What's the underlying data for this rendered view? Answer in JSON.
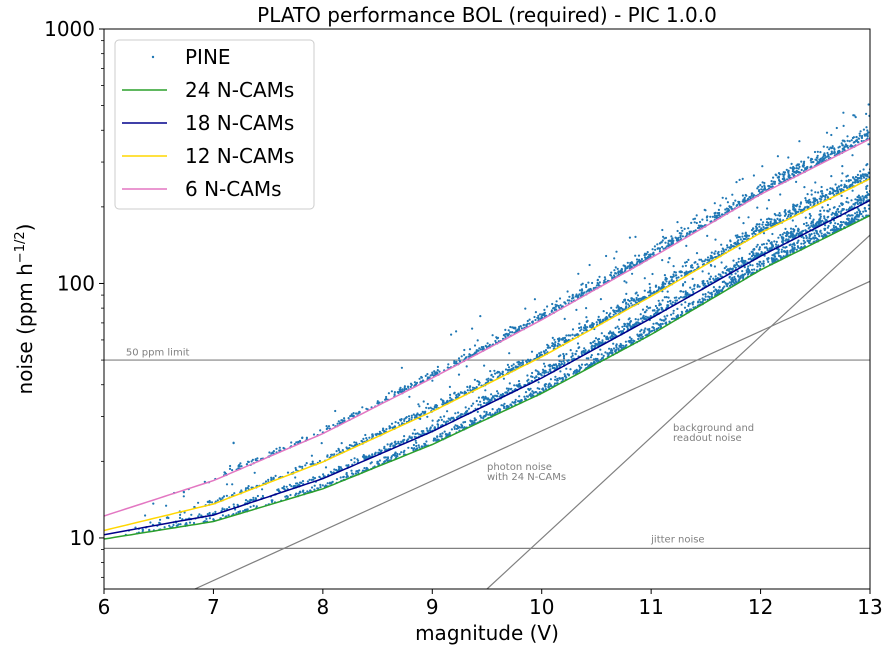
{
  "chart_data": {
    "type": "scatter",
    "title": "PLATO performance BOL (required) - PIC 1.0.0",
    "xlabel": "magnitude (V)",
    "ylabel": "noise (ppm h",
    "ylabel_sup": "−1/2",
    "ylabel_close": ")",
    "xlim": [
      6,
      13
    ],
    "ylim": [
      6.3,
      1000
    ],
    "yscale": "log",
    "x_ticks": [
      "6",
      "7",
      "8",
      "9",
      "10",
      "11",
      "12",
      "13"
    ],
    "y_ticks": [
      "10",
      "100",
      "1000"
    ],
    "legend": {
      "position": "top-left",
      "entries": [
        "PINE",
        "24 N-CAMs",
        "18 N-CAMs",
        "12 N-CAMs",
        "6 N-CAMs"
      ]
    },
    "colors": {
      "pine": "#1f77b4",
      "cams24": "#2ca02c",
      "cams18": "#00008b",
      "cams12": "#ffd700",
      "cams6": "#e377c2",
      "reference": "#808080"
    },
    "series": [
      {
        "name": "24 N-CAMs",
        "x": [
          6,
          7,
          8,
          9,
          10,
          11,
          12,
          13
        ],
        "y": [
          9.9,
          11.6,
          15.6,
          23.3,
          37,
          63,
          113,
          185
        ]
      },
      {
        "name": "18 N-CAMs",
        "x": [
          6,
          7,
          8,
          9,
          10,
          11,
          12,
          13
        ],
        "y": [
          10.3,
          12.3,
          17.1,
          26.2,
          42.5,
          73,
          128,
          212
        ]
      },
      {
        "name": "12 N-CAMs",
        "x": [
          6,
          7,
          8,
          9,
          10,
          11,
          12,
          13
        ],
        "y": [
          10.7,
          13.6,
          19.9,
          31.4,
          51.5,
          89,
          158,
          258
        ]
      },
      {
        "name": "6 N-CAMs",
        "x": [
          6,
          7,
          8,
          9,
          10,
          11,
          12,
          13
        ],
        "y": [
          12.2,
          16.8,
          25.7,
          42.5,
          72,
          126,
          224,
          370
        ]
      }
    ],
    "pine_groups": [
      {
        "cams": 24,
        "x": [
          6.0,
          7.0,
          8.0,
          9.0,
          10.0,
          11.0,
          12.0,
          13.0
        ],
        "y": [
          9.9,
          11.6,
          15.6,
          23.3,
          37,
          63,
          113,
          185
        ]
      },
      {
        "cams": 18,
        "x": [
          6.1,
          7.0,
          8.0,
          9.0,
          10.0,
          11.0,
          12.0,
          13.0
        ],
        "y": [
          10.3,
          12.3,
          17.1,
          26.2,
          42.5,
          73,
          128,
          212
        ]
      },
      {
        "cams": 12,
        "x": [
          6.3,
          7.0,
          8.0,
          9.0,
          10.0,
          11.0,
          12.0,
          13.0
        ],
        "y": [
          10.9,
          13.6,
          19.9,
          31.4,
          51.5,
          89,
          158,
          258
        ]
      },
      {
        "cams": 6,
        "x": [
          6.6,
          7.0,
          8.0,
          9.0,
          10.0,
          11.0,
          12.0,
          13.0
        ],
        "y": [
          13.8,
          16.8,
          25.7,
          42.5,
          72,
          126,
          224,
          370
        ]
      }
    ],
    "reference_lines": [
      {
        "label": "50 ppm limit",
        "x": [
          6,
          13
        ],
        "y": [
          50,
          50
        ]
      },
      {
        "label": "jitter noise",
        "x": [
          6,
          13
        ],
        "y": [
          9.1,
          9.1
        ]
      },
      {
        "label": "photon noise\nwith 24 N-CAMs",
        "x": [
          6.83,
          13
        ],
        "y": [
          6.3,
          102
        ]
      },
      {
        "label": "background and\nreadout noise",
        "x": [
          9.5,
          13
        ],
        "y": [
          6.3,
          155
        ]
      }
    ],
    "annotations": [
      {
        "text": "50 ppm limit",
        "x": 6.2,
        "y": 52
      },
      {
        "text": "jitter noise",
        "x": 11.0,
        "y": 9.6
      },
      {
        "text": "photon noise",
        "x": 9.5,
        "y": 18.5
      },
      {
        "text": "with 24 N-CAMs",
        "x": 9.5,
        "y": 16.9
      },
      {
        "text": "background and",
        "x": 11.2,
        "y": 26.3
      },
      {
        "text": "readout noise",
        "x": 11.2,
        "y": 24
      }
    ]
  }
}
